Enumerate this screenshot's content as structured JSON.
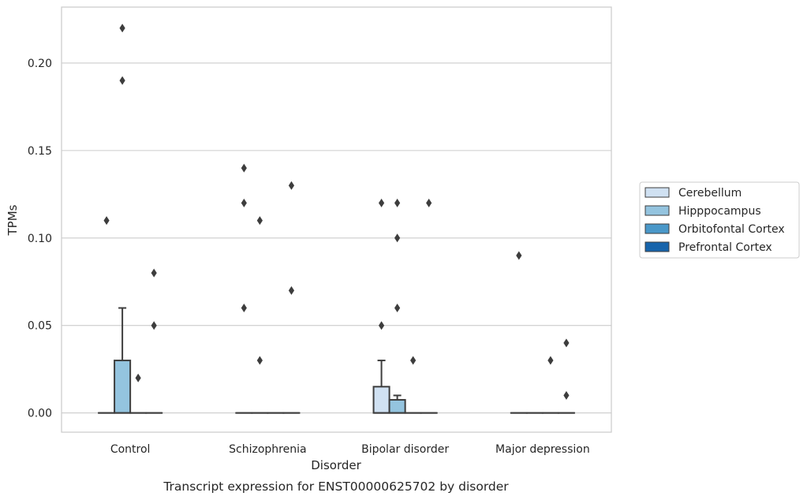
{
  "chart_data": {
    "type": "box",
    "title": "Transcript expression for ENST00000625702 by disorder",
    "xlabel": "Disorder",
    "ylabel": "TPMs",
    "ylim": [
      -0.011,
      0.232
    ],
    "yticks": [
      0.0,
      0.05,
      0.1,
      0.15,
      0.2
    ],
    "ytick_labels": [
      "0.00",
      "0.05",
      "0.10",
      "0.15",
      "0.20"
    ],
    "grid": true,
    "legend_position": "right",
    "categories": [
      "Control",
      "Schizophrenia",
      "Bipolar disorder",
      "Major depression"
    ],
    "series": [
      {
        "name": "Cerebellum",
        "color": "#d0e1f2",
        "boxes": [
          {
            "q1": 0,
            "median": 0,
            "q3": 0,
            "whisker_low": 0,
            "whisker_high": 0,
            "outliers": [
              0.11
            ]
          },
          {
            "q1": 0,
            "median": 0,
            "q3": 0,
            "whisker_low": 0,
            "whisker_high": 0,
            "outliers": [
              0.06,
              0.12,
              0.14
            ]
          },
          {
            "q1": 0,
            "median": 0,
            "q3": 0.015,
            "whisker_low": 0,
            "whisker_high": 0.03,
            "outliers": [
              0.05,
              0.12
            ]
          },
          {
            "q1": 0,
            "median": 0,
            "q3": 0,
            "whisker_low": 0,
            "whisker_high": 0,
            "outliers": [
              0.09
            ]
          }
        ]
      },
      {
        "name": "Hipppocampus",
        "color": "#94c4df",
        "boxes": [
          {
            "q1": 0,
            "median": 0,
            "q3": 0.03,
            "whisker_low": 0,
            "whisker_high": 0.06,
            "outliers": [
              0.19,
              0.22
            ]
          },
          {
            "q1": 0,
            "median": 0,
            "q3": 0,
            "whisker_low": 0,
            "whisker_high": 0,
            "outliers": [
              0.03,
              0.11
            ]
          },
          {
            "q1": 0,
            "median": 0,
            "q3": 0.0075,
            "whisker_low": 0,
            "whisker_high": 0.01,
            "outliers": [
              0.06,
              0.1,
              0.12
            ]
          },
          {
            "q1": 0,
            "median": 0,
            "q3": 0,
            "whisker_low": 0,
            "whisker_high": 0,
            "outliers": []
          }
        ]
      },
      {
        "name": "Orbitofontal Cortex",
        "color": "#4a98c9",
        "boxes": [
          {
            "q1": 0,
            "median": 0,
            "q3": 0,
            "whisker_low": 0,
            "whisker_high": 0,
            "outliers": [
              0.02
            ]
          },
          {
            "q1": 0,
            "median": 0,
            "q3": 0,
            "whisker_low": 0,
            "whisker_high": 0,
            "outliers": []
          },
          {
            "q1": 0,
            "median": 0,
            "q3": 0,
            "whisker_low": 0,
            "whisker_high": 0,
            "outliers": [
              0.03
            ]
          },
          {
            "q1": 0,
            "median": 0,
            "q3": 0,
            "whisker_low": 0,
            "whisker_high": 0,
            "outliers": [
              0.03
            ]
          }
        ]
      },
      {
        "name": "Prefrontal Cortex",
        "color": "#1764ab",
        "boxes": [
          {
            "q1": 0,
            "median": 0,
            "q3": 0,
            "whisker_low": 0,
            "whisker_high": 0,
            "outliers": [
              0.05,
              0.08
            ]
          },
          {
            "q1": 0,
            "median": 0,
            "q3": 0,
            "whisker_low": 0,
            "whisker_high": 0,
            "outliers": [
              0.07,
              0.13
            ]
          },
          {
            "q1": 0,
            "median": 0,
            "q3": 0,
            "whisker_low": 0,
            "whisker_high": 0,
            "outliers": [
              0.12
            ]
          },
          {
            "q1": 0,
            "median": 0,
            "q3": 0,
            "whisker_low": 0,
            "whisker_high": 0,
            "outliers": [
              0.01,
              0.04
            ]
          }
        ]
      }
    ]
  }
}
